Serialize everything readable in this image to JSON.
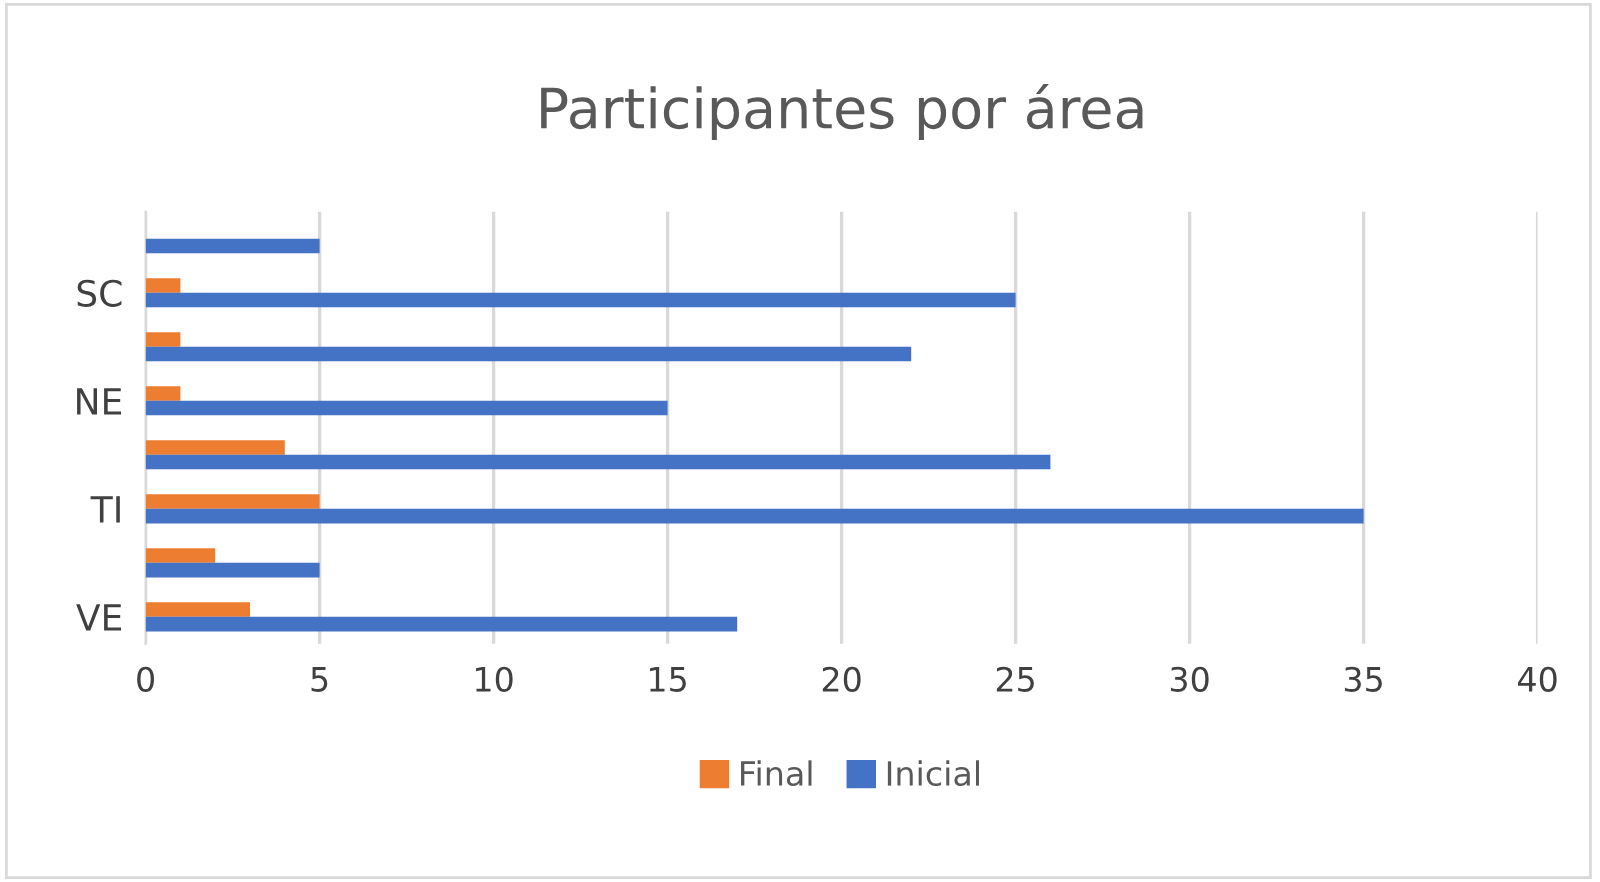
{
  "chart_data": {
    "type": "bar",
    "orientation": "horizontal",
    "title": "Participantes por área",
    "categories": [
      null,
      "SC",
      null,
      "NE",
      null,
      "TI",
      null,
      "VE"
    ],
    "series": [
      {
        "name": "Final",
        "color": "#ed7d31",
        "values": [
          0,
          1,
          1,
          1,
          4,
          5,
          2,
          3
        ]
      },
      {
        "name": "Inicial",
        "color": "#4472c4",
        "values": [
          5,
          25,
          22,
          15,
          26,
          35,
          5,
          17
        ]
      }
    ],
    "xlim": [
      0,
      40
    ],
    "xticks": [
      0,
      5,
      10,
      15,
      20,
      25,
      30,
      35,
      40
    ],
    "grid": "x",
    "legend": "bottom"
  }
}
